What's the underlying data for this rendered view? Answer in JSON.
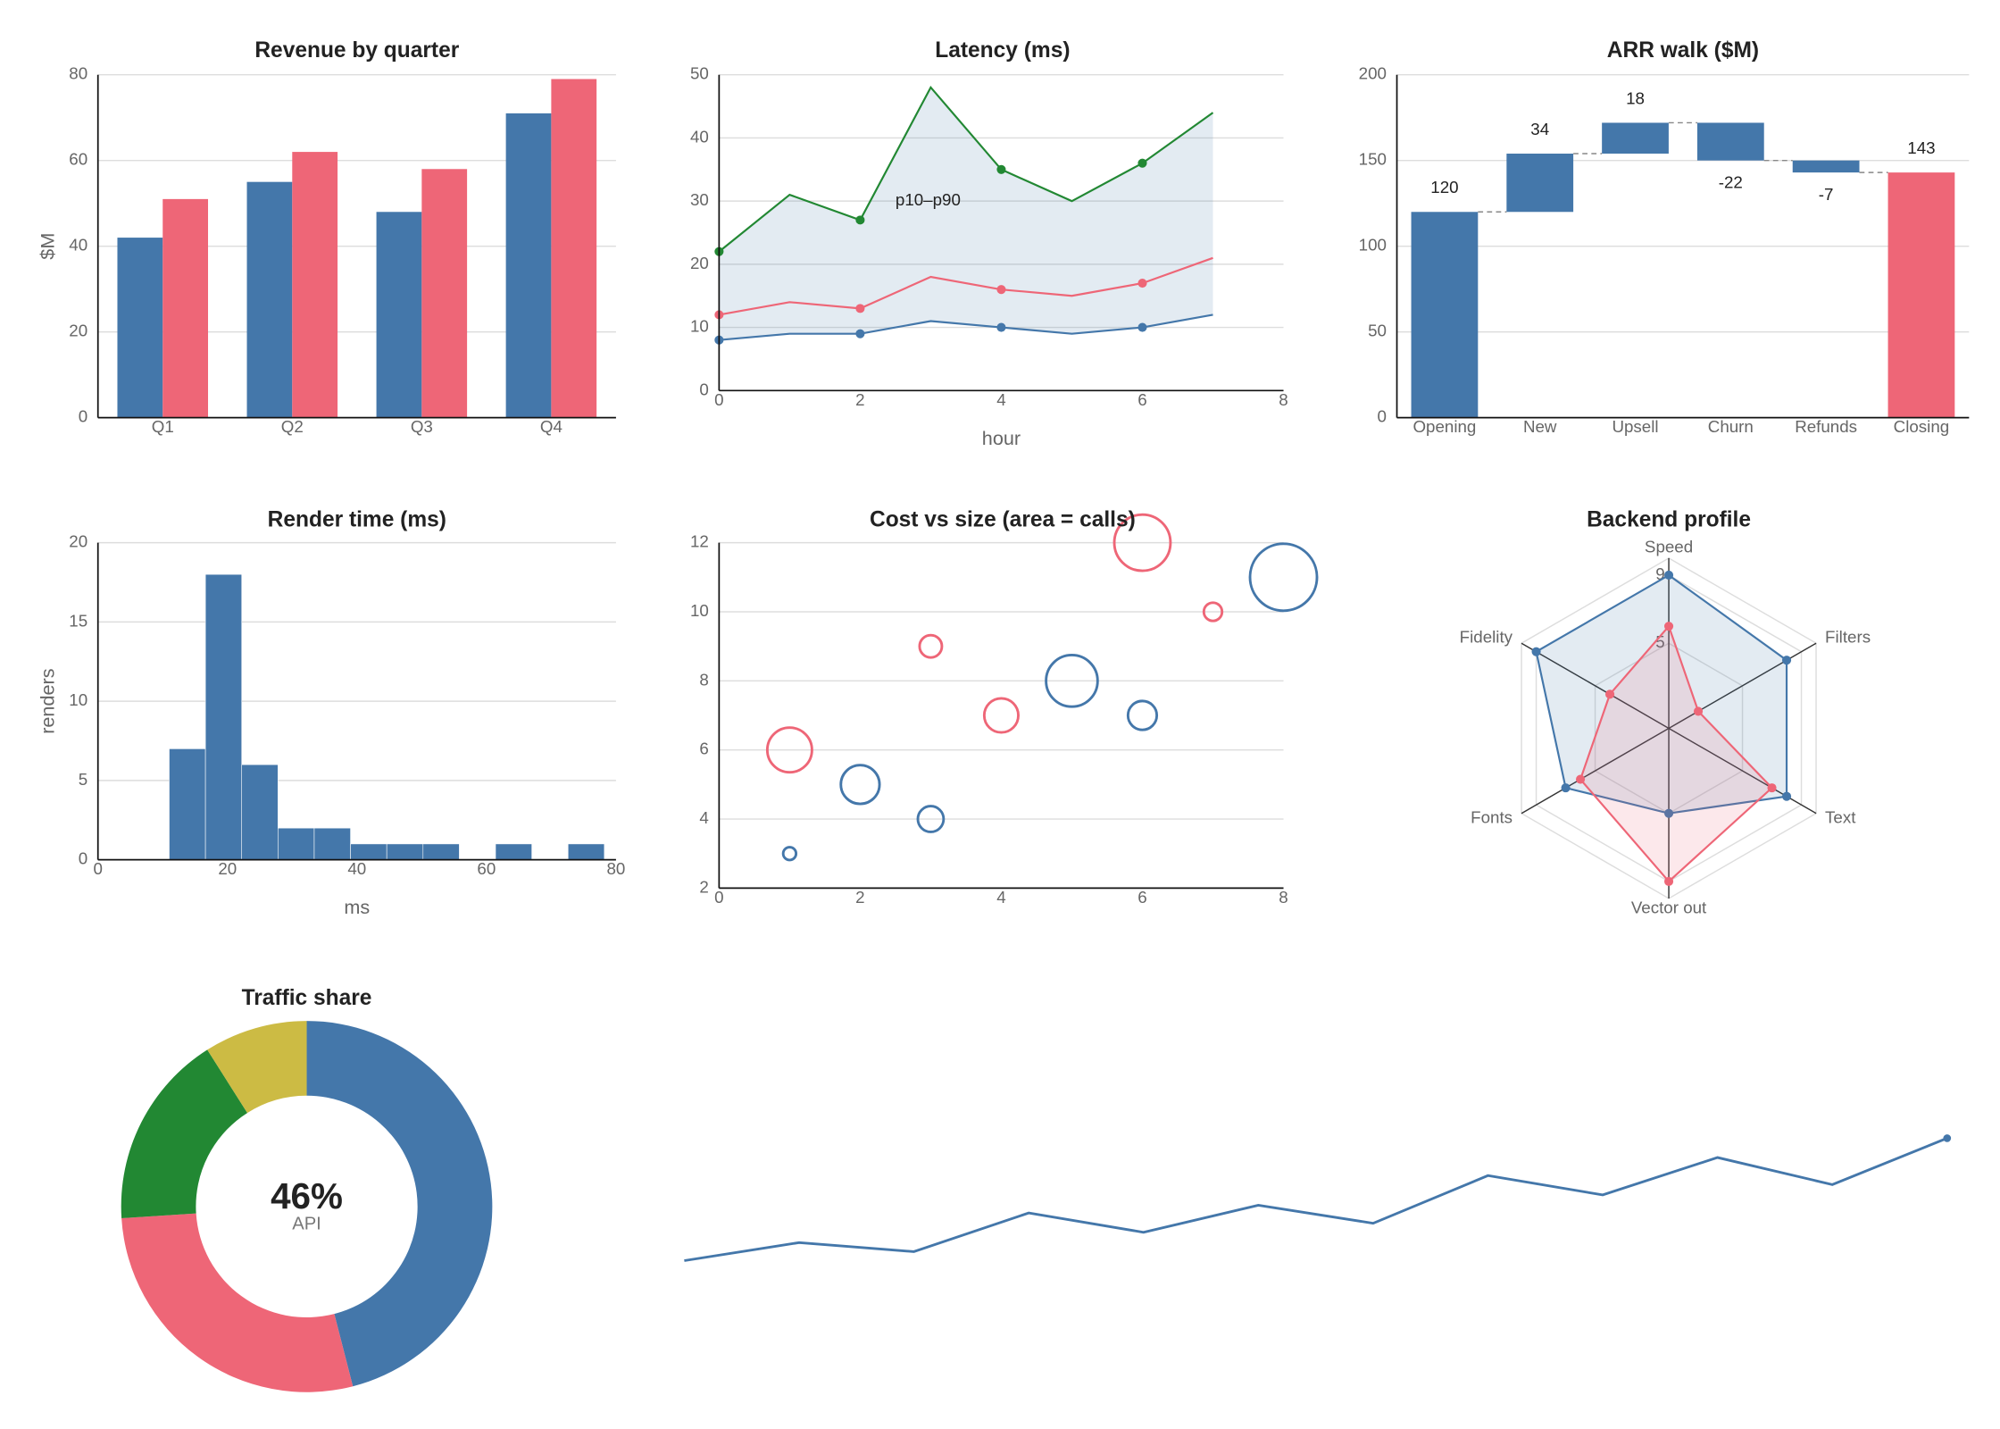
{
  "chart_data": [
    {
      "type": "bar",
      "title": "Revenue by quarter",
      "ylabel": "$M",
      "categories": [
        "Q1",
        "Q2",
        "Q3",
        "Q4"
      ],
      "series": [
        {
          "color": "#4477aa",
          "values": [
            42,
            55,
            48,
            71
          ]
        },
        {
          "color": "#ee6677",
          "values": [
            51,
            62,
            58,
            79
          ]
        }
      ],
      "ylim": [
        0,
        80
      ],
      "yticks": [
        0,
        20,
        40,
        60,
        80
      ],
      "grid": true
    },
    {
      "type": "line",
      "title": "Latency (ms)",
      "xlabel": "hour",
      "x": [
        0,
        1,
        2,
        3,
        4,
        5,
        6,
        7
      ],
      "series": [
        {
          "color": "#4477aa",
          "values": [
            8,
            9,
            9,
            11,
            10,
            9,
            10,
            12
          ]
        },
        {
          "color": "#ee6677",
          "values": [
            12,
            14,
            13,
            18,
            16,
            15,
            17,
            21
          ]
        },
        {
          "color": "#228833",
          "values": [
            22,
            31,
            27,
            48,
            35,
            30,
            36,
            44
          ]
        }
      ],
      "fill_between": [
        0,
        2
      ],
      "fill_color": "#4477aa",
      "marker_every": 2,
      "annotation": {
        "text": "p10–p90",
        "x": 2.5,
        "y": 30
      },
      "xlim": [
        0,
        8
      ],
      "xticks": [
        0,
        2,
        4,
        6,
        8
      ],
      "ylim": [
        0,
        50
      ],
      "yticks": [
        0,
        10,
        20,
        30,
        40,
        50
      ],
      "grid": true
    },
    {
      "type": "waterfall",
      "title": "ARR walk ($M)",
      "categories": [
        "Opening",
        "New",
        "Upsell",
        "Churn",
        "Refunds",
        "Closing"
      ],
      "values": [
        120,
        34,
        18,
        -22,
        -7,
        143
      ],
      "totals": [
        5
      ],
      "color": "#4477aa",
      "total_color": "#ee6677",
      "ylim": [
        0,
        200
      ],
      "yticks": [
        0,
        50,
        100,
        150,
        200
      ],
      "grid": true
    },
    {
      "type": "histogram",
      "title": "Render time (ms)",
      "xlabel": "ms",
      "ylabel": "renders",
      "bins": [
        11,
        16.6,
        22.2,
        27.8,
        33.4,
        39,
        44.6,
        50.2,
        55.8,
        61.4,
        67,
        72.6,
        78.2
      ],
      "counts": [
        7,
        18,
        6,
        2,
        2,
        1,
        1,
        1,
        0,
        1,
        0,
        1
      ],
      "color": "#4477aa",
      "xlim": [
        0,
        80
      ],
      "xticks": [
        0,
        20,
        40,
        60,
        80
      ],
      "ylim": [
        0,
        20
      ],
      "yticks": [
        0,
        5,
        10,
        15,
        20
      ],
      "grid": true
    },
    {
      "type": "bubble",
      "title": "Cost vs size (area = calls)",
      "series": [
        {
          "color": "#4477aa",
          "x": [
            1,
            2,
            3,
            5,
            6,
            8
          ],
          "y": [
            3,
            5,
            4,
            8,
            7,
            11
          ],
          "size": [
            1,
            9,
            4,
            16,
            5,
            27
          ]
        },
        {
          "color": "#ee6677",
          "x": [
            1,
            3,
            4,
            6,
            7
          ],
          "y": [
            6,
            9,
            7,
            12,
            10
          ],
          "size": [
            12,
            3,
            7,
            19,
            2
          ]
        }
      ],
      "xlim": [
        0,
        8
      ],
      "xticks": [
        0,
        2,
        4,
        6,
        8
      ],
      "ylim": [
        2,
        12
      ],
      "yticks": [
        2,
        4,
        6,
        8,
        10,
        12
      ],
      "grid": true
    },
    {
      "type": "radar",
      "title": "Backend profile",
      "axes": [
        "Speed",
        "Filters",
        "Text",
        "Vector out",
        "Fonts",
        "Fidelity"
      ],
      "series": [
        {
          "color": "#4477aa",
          "values": [
            9,
            8,
            8,
            5,
            7,
            9
          ]
        },
        {
          "color": "#ee6677",
          "values": [
            6,
            2,
            7,
            9,
            6,
            4
          ]
        }
      ],
      "rlim": [
        0,
        10
      ],
      "rticks": [
        5,
        9
      ]
    },
    {
      "type": "donut",
      "title": "Traffic share",
      "categories": [
        "API",
        null,
        null,
        null
      ],
      "values": [
        46,
        28,
        17,
        9
      ],
      "value_labels": [
        "46%",
        null,
        null,
        null
      ],
      "colors": [
        "#4477aa",
        "#ee6677",
        "#228833",
        "#ccbb44"
      ]
    },
    {
      "type": "sparkline",
      "values": [
        22,
        36,
        29,
        59,
        44,
        65,
        51,
        88,
        73,
        102,
        81,
        117
      ],
      "color": "#4477aa",
      "marker_last": true
    }
  ]
}
